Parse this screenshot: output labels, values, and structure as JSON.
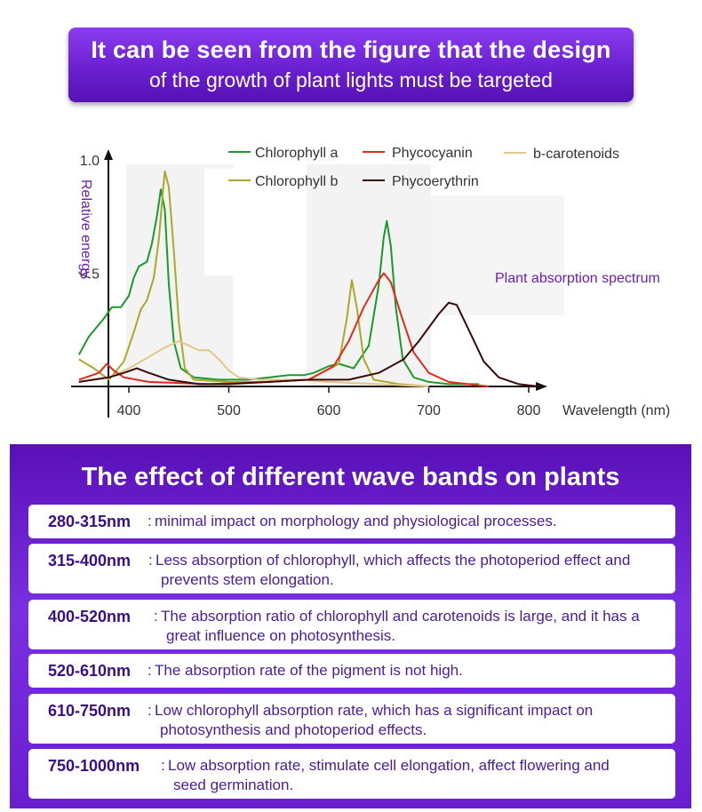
{
  "banner": {
    "line1": "It can be seen from the figure that the design",
    "line2": "of the growth of plant lights must be targeted"
  },
  "chart_data": {
    "type": "line",
    "title": "",
    "xlabel": "Wavelength (nm)",
    "ylabel": "Relative energy",
    "xlim": [
      360,
      810
    ],
    "ylim": [
      0,
      1.0
    ],
    "x_ticks": [
      "400",
      "500",
      "600",
      "700",
      "800"
    ],
    "y_ticks": [
      "0.5",
      "1.0"
    ],
    "annotation": "Plant absorption spectrum",
    "legend_position": "top",
    "series": [
      {
        "name": "Chlorophyll a",
        "color": "#1a9a2a",
        "points": [
          [
            350,
            0.14
          ],
          [
            360,
            0.22
          ],
          [
            375,
            0.3
          ],
          [
            383,
            0.35
          ],
          [
            392,
            0.35
          ],
          [
            400,
            0.4
          ],
          [
            405,
            0.48
          ],
          [
            410,
            0.53
          ],
          [
            418,
            0.55
          ],
          [
            423,
            0.63
          ],
          [
            428,
            0.75
          ],
          [
            432,
            0.87
          ],
          [
            436,
            0.78
          ],
          [
            440,
            0.45
          ],
          [
            445,
            0.2
          ],
          [
            452,
            0.08
          ],
          [
            465,
            0.04
          ],
          [
            490,
            0.03
          ],
          [
            520,
            0.03
          ],
          [
            560,
            0.05
          ],
          [
            575,
            0.05
          ],
          [
            585,
            0.06
          ],
          [
            600,
            0.09
          ],
          [
            610,
            0.1
          ],
          [
            625,
            0.08
          ],
          [
            640,
            0.18
          ],
          [
            650,
            0.45
          ],
          [
            655,
            0.66
          ],
          [
            658,
            0.73
          ],
          [
            662,
            0.62
          ],
          [
            667,
            0.35
          ],
          [
            674,
            0.12
          ],
          [
            685,
            0.04
          ],
          [
            700,
            0.02
          ],
          [
            720,
            0.01
          ],
          [
            750,
            0.01
          ]
        ]
      },
      {
        "name": "Chlorophyll b",
        "color": "#aaa82a",
        "points": [
          [
            350,
            0.12
          ],
          [
            365,
            0.08
          ],
          [
            380,
            0.03
          ],
          [
            395,
            0.11
          ],
          [
            405,
            0.24
          ],
          [
            412,
            0.34
          ],
          [
            418,
            0.38
          ],
          [
            425,
            0.48
          ],
          [
            430,
            0.65
          ],
          [
            434,
            0.86
          ],
          [
            436,
            0.95
          ],
          [
            440,
            0.88
          ],
          [
            445,
            0.6
          ],
          [
            450,
            0.28
          ],
          [
            456,
            0.08
          ],
          [
            465,
            0.03
          ],
          [
            500,
            0.02
          ],
          [
            540,
            0.02
          ],
          [
            580,
            0.03
          ],
          [
            610,
            0.1
          ],
          [
            618,
            0.3
          ],
          [
            623,
            0.47
          ],
          [
            628,
            0.35
          ],
          [
            635,
            0.12
          ],
          [
            645,
            0.03
          ],
          [
            670,
            0.01
          ],
          [
            700,
            0.0
          ]
        ]
      },
      {
        "name": "b-carotenoids",
        "color": "#e3c68a",
        "points": [
          [
            350,
            0.02
          ],
          [
            380,
            0.04
          ],
          [
            400,
            0.08
          ],
          [
            420,
            0.13
          ],
          [
            435,
            0.17
          ],
          [
            450,
            0.2
          ],
          [
            460,
            0.18
          ],
          [
            470,
            0.16
          ],
          [
            480,
            0.16
          ],
          [
            490,
            0.12
          ],
          [
            500,
            0.07
          ],
          [
            510,
            0.04
          ],
          [
            530,
            0.03
          ],
          [
            570,
            0.03
          ],
          [
            600,
            0.02
          ],
          [
            650,
            0.01
          ],
          [
            700,
            0.0
          ]
        ]
      },
      {
        "name": "Phycocyanin",
        "color": "#e22a1a",
        "points": [
          [
            350,
            0.03
          ],
          [
            370,
            0.06
          ],
          [
            378,
            0.1
          ],
          [
            385,
            0.07
          ],
          [
            395,
            0.04
          ],
          [
            420,
            0.02
          ],
          [
            480,
            0.01
          ],
          [
            540,
            0.02
          ],
          [
            580,
            0.03
          ],
          [
            605,
            0.09
          ],
          [
            620,
            0.2
          ],
          [
            635,
            0.35
          ],
          [
            650,
            0.47
          ],
          [
            655,
            0.5
          ],
          [
            662,
            0.46
          ],
          [
            672,
            0.32
          ],
          [
            685,
            0.15
          ],
          [
            700,
            0.06
          ],
          [
            720,
            0.02
          ],
          [
            760,
            0.0
          ]
        ]
      },
      {
        "name": "Phycoerythrin",
        "color": "#3a0a08",
        "points": [
          [
            350,
            0.02
          ],
          [
            380,
            0.04
          ],
          [
            395,
            0.06
          ],
          [
            408,
            0.08
          ],
          [
            420,
            0.06
          ],
          [
            440,
            0.03
          ],
          [
            470,
            0.01
          ],
          [
            500,
            0.01
          ],
          [
            540,
            0.02
          ],
          [
            580,
            0.03
          ],
          [
            620,
            0.03
          ],
          [
            650,
            0.06
          ],
          [
            675,
            0.12
          ],
          [
            690,
            0.2
          ],
          [
            710,
            0.32
          ],
          [
            720,
            0.37
          ],
          [
            728,
            0.36
          ],
          [
            740,
            0.25
          ],
          [
            755,
            0.11
          ],
          [
            770,
            0.04
          ],
          [
            790,
            0.01
          ],
          [
            810,
            0.0
          ]
        ]
      }
    ]
  },
  "effects": {
    "title": "The effect of different wave bands on plants",
    "rows": [
      {
        "range": "280-315nm",
        "sep": ":",
        "desc1": "minimal impact on morphology and physiological processes.",
        "desc2": ""
      },
      {
        "range": "315-400nm",
        "sep": ":",
        "desc1": "Less absorption of chlorophyll, which affects the photoperiod effect and",
        "desc2": "prevents stem elongation."
      },
      {
        "range": "400-520nm",
        "sep": ":",
        "desc1": "The absorption ratio of chlorophyll and carotenoids is large, and it has a",
        "desc2": "great influence on photosynthesis."
      },
      {
        "range": "520-610nm",
        "sep": ":",
        "desc1": "The absorption rate of the pigment is not high.",
        "desc2": ""
      },
      {
        "range": "610-750nm",
        "sep": ":",
        "desc1": "Low chlorophyll absorption rate, which has a significant impact on",
        "desc2": "photosynthesis and photoperiod effects."
      },
      {
        "range": "750-1000nm",
        "sep": ":",
        "desc1": "Low absorption rate, stimulate cell elongation, affect flowering and",
        "desc2": "seed germination."
      }
    ]
  }
}
